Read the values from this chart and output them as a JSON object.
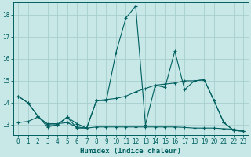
{
  "xlabel": "Humidex (Indice chaleur)",
  "xlim": [
    -0.5,
    23.5
  ],
  "ylim": [
    12.55,
    18.55
  ],
  "yticks": [
    13,
    14,
    15,
    16,
    17,
    18
  ],
  "xticks": [
    0,
    1,
    2,
    3,
    4,
    5,
    6,
    7,
    8,
    9,
    10,
    11,
    12,
    13,
    14,
    15,
    16,
    17,
    18,
    19,
    20,
    21,
    22,
    23
  ],
  "background_color": "#c8e8e8",
  "grid_color": "#a8cece",
  "line_color": "#005f5f",
  "s1_x": [
    0,
    1,
    2,
    3,
    4,
    5,
    6,
    7,
    8,
    9,
    10,
    11,
    12,
    13,
    14,
    15,
    16,
    17,
    18,
    19,
    20,
    21,
    22,
    23
  ],
  "s1_y": [
    14.3,
    14.0,
    13.4,
    12.9,
    13.0,
    13.35,
    12.85,
    12.85,
    14.1,
    14.1,
    16.3,
    17.85,
    18.4,
    13.0,
    14.8,
    14.7,
    16.35,
    14.6,
    15.0,
    15.05,
    14.1,
    13.1,
    12.75,
    12.7
  ],
  "s2_x": [
    0,
    1,
    2,
    3,
    4,
    5,
    6,
    7,
    8,
    9,
    10,
    11,
    12,
    13,
    14,
    15,
    16,
    17,
    18,
    19,
    20,
    21,
    22,
    23
  ],
  "s2_y": [
    14.3,
    14.0,
    13.4,
    13.0,
    13.0,
    13.35,
    13.05,
    12.85,
    14.1,
    14.15,
    14.2,
    14.3,
    14.5,
    14.65,
    14.8,
    14.85,
    14.9,
    15.0,
    15.0,
    15.05,
    14.1,
    13.1,
    12.75,
    12.7
  ],
  "s3_x": [
    0,
    1,
    2,
    3,
    4,
    5,
    6,
    7,
    8,
    9,
    10,
    11,
    12,
    13,
    14,
    15,
    16,
    17,
    18,
    19,
    20,
    21,
    22,
    23
  ],
  "s3_y": [
    13.1,
    13.15,
    13.35,
    13.05,
    13.05,
    13.1,
    12.9,
    12.85,
    12.9,
    12.9,
    12.9,
    12.9,
    12.9,
    12.9,
    12.9,
    12.9,
    12.9,
    12.88,
    12.85,
    12.85,
    12.85,
    12.82,
    12.8,
    12.72
  ]
}
